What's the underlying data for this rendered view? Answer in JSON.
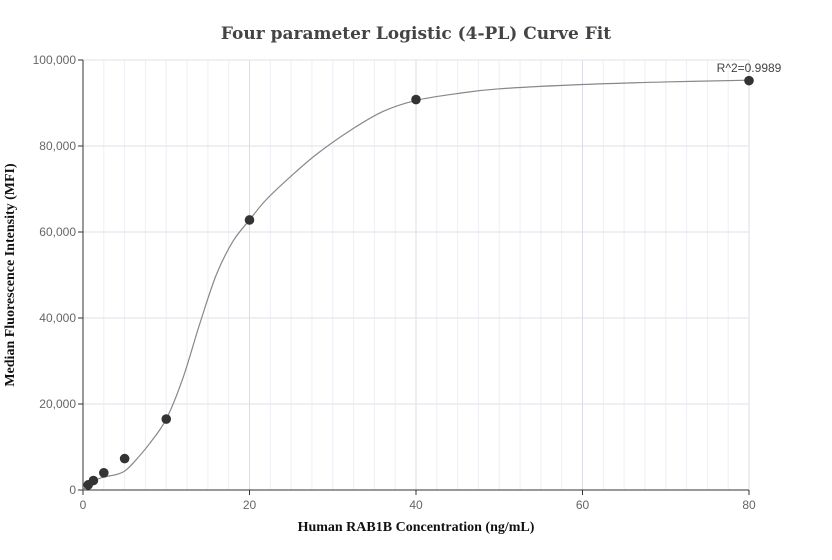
{
  "chart_data": {
    "type": "scatter",
    "title": "Four parameter Logistic (4-PL) Curve Fit",
    "xlabel": "Human RAB1B Concentration (ng/mL)",
    "ylabel": "Median Fluorescence Intensity (MFI)",
    "xlim": [
      0,
      80
    ],
    "ylim": [
      0,
      100000
    ],
    "x_ticks": [
      0,
      20,
      40,
      60,
      80
    ],
    "y_ticks": [
      0,
      20000,
      40000,
      60000,
      80000,
      100000
    ],
    "x_tick_labels": [
      "0",
      "20",
      "40",
      "60",
      "80"
    ],
    "y_tick_labels": [
      "0",
      "20,000",
      "40,000",
      "60,000",
      "80,000",
      "100,000"
    ],
    "grid": true,
    "annotation": "R^2=0.9989",
    "series": [
      {
        "kind": "points",
        "color": "#333333",
        "x": [
          0.625,
          1.25,
          2.5,
          5,
          10,
          20,
          40,
          80
        ],
        "y": [
          1200,
          2200,
          4000,
          7300,
          16500,
          62800,
          90800,
          95200
        ]
      },
      {
        "kind": "fitted-curve",
        "color": "#888888",
        "x": [
          0,
          0.625,
          1.25,
          2.5,
          4,
          5,
          6,
          8,
          10,
          12,
          14,
          16,
          18,
          20,
          22,
          25,
          28,
          32,
          36,
          40,
          45,
          50,
          60,
          70,
          80
        ],
        "y": [
          0,
          1200,
          2100,
          3000,
          3600,
          4400,
          6200,
          10800,
          16500,
          26000,
          38500,
          50000,
          57800,
          62800,
          67500,
          73000,
          78000,
          83500,
          88000,
          90600,
          92200,
          93300,
          94300,
          94900,
          95300
        ]
      }
    ]
  }
}
